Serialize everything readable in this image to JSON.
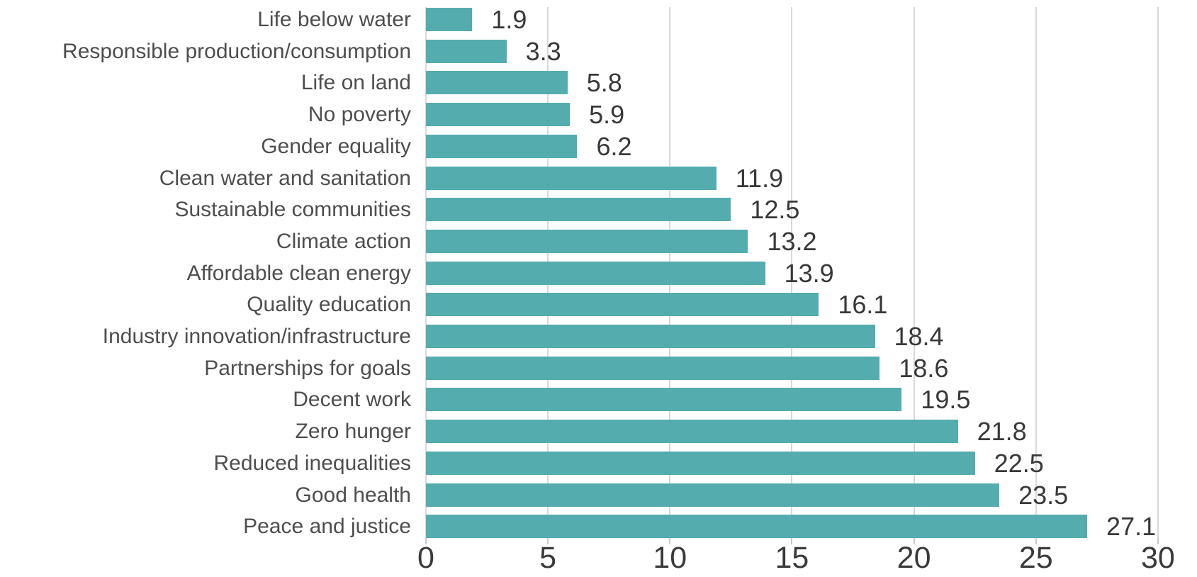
{
  "chart_data": {
    "type": "bar",
    "orientation": "horizontal",
    "title": "",
    "xlabel": "",
    "ylabel": "",
    "categories": [
      "Life below water",
      "Responsible production/consumption",
      "Life on land",
      "No poverty",
      "Gender equality",
      "Clean water and sanitation",
      "Sustainable communities",
      "Climate action",
      "Affordable clean energy",
      "Quality education",
      "Industry innovation/infrastructure",
      "Partnerships for goals",
      "Decent work",
      "Zero hunger",
      "Reduced inequalities",
      "Good health",
      "Peace and justice"
    ],
    "values": [
      1.9,
      3.3,
      5.8,
      5.9,
      6.2,
      11.9,
      12.5,
      13.2,
      13.9,
      16.1,
      18.4,
      18.6,
      19.5,
      21.8,
      22.5,
      23.5,
      27.1
    ],
    "value_labels": [
      "1.9",
      "3.3",
      "5.8",
      "5.9",
      "6.2",
      "11.9",
      "12.5",
      "13.2",
      "13.9",
      "16.1",
      "18.4",
      "18.6",
      "19.5",
      "21.8",
      "22.5",
      "23.5",
      "27.1"
    ],
    "xlim": [
      0,
      30
    ],
    "x_ticks": [
      0,
      5,
      10,
      15,
      20,
      25,
      30
    ],
    "grid": "vertical",
    "legend": "none",
    "colors": {
      "bar": "#54acae",
      "gridline": "#d9d9d9",
      "category_text": "#4e4e4e",
      "value_text": "#383838",
      "axis_text": "#3a3a3a",
      "background": "#ffffff"
    }
  }
}
